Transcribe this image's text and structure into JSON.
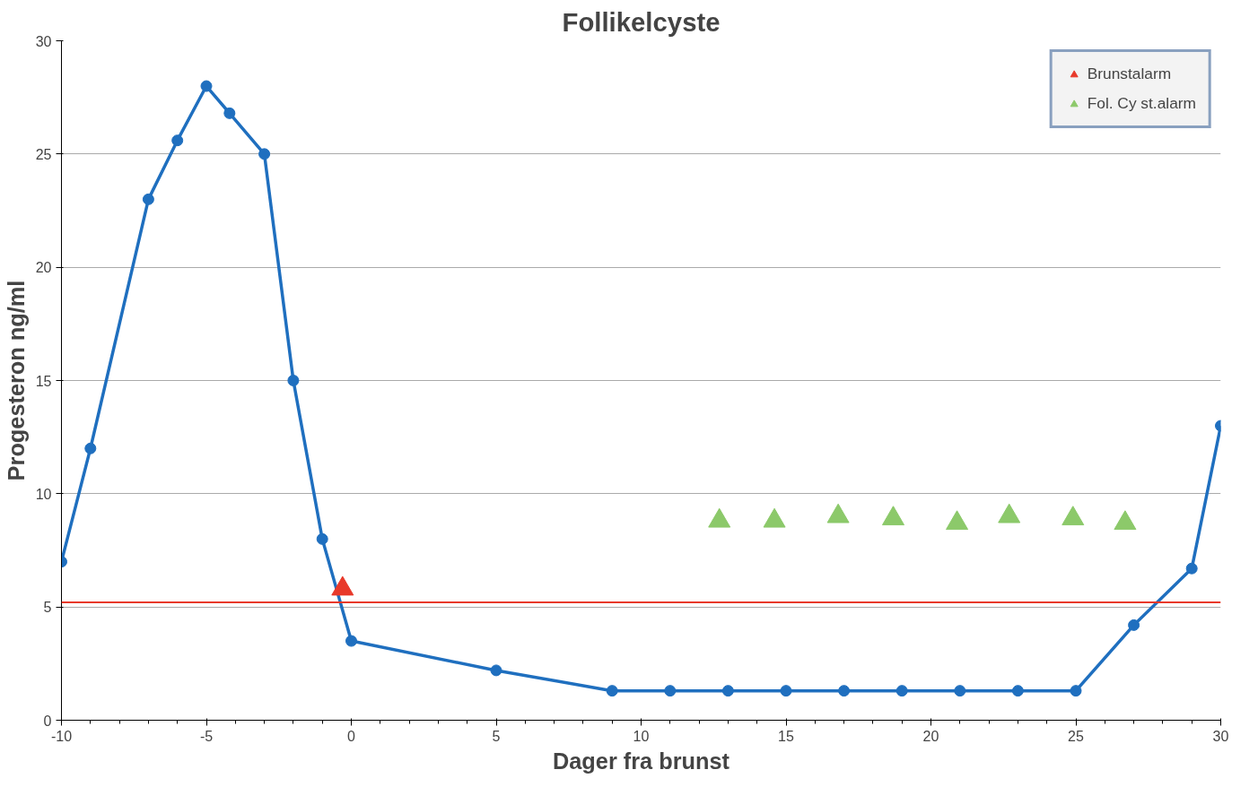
{
  "chart_data": {
    "type": "line",
    "title": "Follikelcyste",
    "xlabel": "Dager fra brunst",
    "ylabel": "Progesteron ng/ml",
    "xlim": [
      -10,
      30
    ],
    "xticks": [
      -10,
      -5,
      0,
      5,
      10,
      15,
      20,
      25,
      30
    ],
    "ylim": [
      0,
      30
    ],
    "yticks": [
      0,
      5,
      10,
      15,
      20,
      25,
      30
    ],
    "grid": "y",
    "legend": "top right",
    "series": [
      {
        "color": "#1f6fbf",
        "marker": "circle",
        "x": [
          -10,
          -9,
          -7,
          -6,
          -5,
          -4.2,
          -3,
          -2,
          -1,
          0,
          5,
          9,
          11,
          13,
          15,
          17,
          19,
          21,
          23,
          25,
          27,
          29,
          30
        ],
        "values": [
          7,
          12,
          23,
          25.6,
          28,
          26.8,
          25,
          15,
          8,
          3.5,
          2.2,
          1.3,
          1.3,
          1.3,
          1.3,
          1.3,
          1.3,
          1.3,
          1.3,
          1.3,
          4.2,
          6.7,
          13
        ]
      },
      {
        "type": "scatter",
        "name": "Brunstalarm",
        "color": "#e8392a",
        "marker": "triangle",
        "x": [
          -0.3
        ],
        "values": [
          5.8
        ]
      },
      {
        "type": "scatter",
        "name": "Fol. Cy st.alarm",
        "color": "#8cc96a",
        "marker": "triangle",
        "x": [
          12.7,
          14.6,
          16.8,
          18.7,
          20.9,
          22.7,
          24.9,
          26.7
        ],
        "values": [
          8.8,
          8.8,
          9.0,
          8.9,
          8.7,
          9.0,
          8.9,
          8.7
        ]
      }
    ],
    "ref_lines": [
      {
        "axis": "y",
        "value": 5.2,
        "color": "#e8392a"
      }
    ]
  }
}
